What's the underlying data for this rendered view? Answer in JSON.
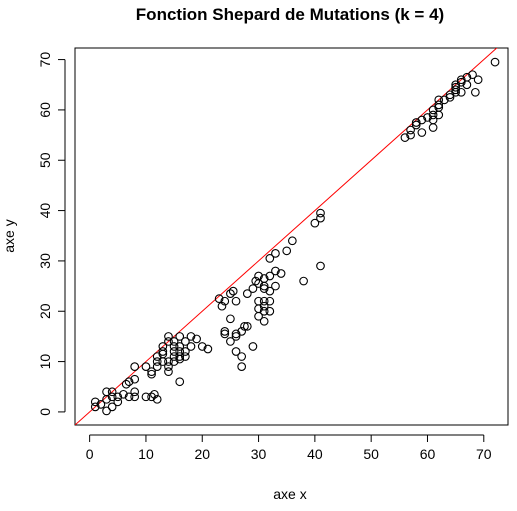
{
  "chart_data": {
    "type": "scatter",
    "title": "Fonction Shepard de Mutations (k = 4)",
    "xlabel": "axe x",
    "ylabel": "axe y",
    "xlim": [
      -2.6,
      74.3
    ],
    "ylim": [
      -2.6,
      72.3
    ],
    "x_ticks": [
      0,
      10,
      20,
      30,
      40,
      50,
      60,
      70
    ],
    "y_ticks": [
      0,
      10,
      20,
      30,
      40,
      50,
      60,
      70
    ],
    "reference_line": {
      "slope": 1,
      "intercept": 0,
      "color": "#ff0000"
    },
    "points": [
      [
        1,
        2
      ],
      [
        1,
        1
      ],
      [
        2,
        1.5
      ],
      [
        3,
        0.2
      ],
      [
        3,
        2.5
      ],
      [
        3,
        4
      ],
      [
        4,
        4
      ],
      [
        4,
        3
      ],
      [
        4,
        1
      ],
      [
        5,
        2
      ],
      [
        5,
        3
      ],
      [
        6,
        3.5
      ],
      [
        6.5,
        5.5
      ],
      [
        7,
        6
      ],
      [
        7,
        3
      ],
      [
        8,
        4
      ],
      [
        8,
        3
      ],
      [
        8,
        9
      ],
      [
        8,
        6.5
      ],
      [
        10,
        9
      ],
      [
        10,
        3
      ],
      [
        11,
        3
      ],
      [
        11,
        8
      ],
      [
        11,
        7.5
      ],
      [
        11.5,
        3.5
      ],
      [
        12,
        2.5
      ],
      [
        12,
        9
      ],
      [
        12,
        10
      ],
      [
        12,
        11
      ],
      [
        13,
        10
      ],
      [
        13,
        11.5
      ],
      [
        13,
        13
      ],
      [
        13,
        12
      ],
      [
        14,
        15
      ],
      [
        14,
        14
      ],
      [
        14,
        9
      ],
      [
        14,
        8
      ],
      [
        14,
        10
      ],
      [
        15,
        14
      ],
      [
        15,
        12
      ],
      [
        15,
        11
      ],
      [
        15,
        13
      ],
      [
        15,
        10
      ],
      [
        16,
        6
      ],
      [
        16,
        15
      ],
      [
        16,
        12
      ],
      [
        16,
        11
      ],
      [
        16,
        13
      ],
      [
        16,
        10.5
      ],
      [
        17,
        14
      ],
      [
        17,
        12
      ],
      [
        17,
        11
      ],
      [
        18,
        15
      ],
      [
        18,
        13
      ],
      [
        19,
        14.5
      ],
      [
        20,
        13
      ],
      [
        21,
        12.5
      ],
      [
        23,
        22.5
      ],
      [
        23.5,
        21
      ],
      [
        24,
        22
      ],
      [
        24,
        15.5
      ],
      [
        24,
        16
      ],
      [
        25,
        18.5
      ],
      [
        25,
        14
      ],
      [
        25,
        23.5
      ],
      [
        25.5,
        24
      ],
      [
        26,
        22
      ],
      [
        26,
        15
      ],
      [
        26,
        12
      ],
      [
        26,
        15.5
      ],
      [
        27,
        16
      ],
      [
        27,
        11
      ],
      [
        27,
        9
      ],
      [
        27.5,
        17
      ],
      [
        28,
        23.5
      ],
      [
        28,
        17
      ],
      [
        29,
        24.5
      ],
      [
        29,
        13
      ],
      [
        29.5,
        26
      ],
      [
        30,
        25.5
      ],
      [
        30,
        22
      ],
      [
        30,
        20.5
      ],
      [
        30,
        19
      ],
      [
        30,
        27
      ],
      [
        31,
        22
      ],
      [
        31,
        24.5
      ],
      [
        31,
        21
      ],
      [
        31,
        20
      ],
      [
        31,
        25
      ],
      [
        31,
        26.5
      ],
      [
        31,
        18
      ],
      [
        32,
        27
      ],
      [
        32,
        24
      ],
      [
        32,
        22
      ],
      [
        32,
        20
      ],
      [
        32,
        30.5
      ],
      [
        33,
        28
      ],
      [
        33,
        25
      ],
      [
        33,
        31.5
      ],
      [
        34,
        27.5
      ],
      [
        35,
        32
      ],
      [
        36,
        34
      ],
      [
        38,
        26
      ],
      [
        40,
        37.5
      ],
      [
        41,
        38.5
      ],
      [
        41,
        39.5
      ],
      [
        41,
        29
      ],
      [
        56,
        54.5
      ],
      [
        57,
        55
      ],
      [
        57,
        56
      ],
      [
        58,
        57
      ],
      [
        58,
        57.5
      ],
      [
        59,
        55.5
      ],
      [
        59,
        58
      ],
      [
        60,
        58.5
      ],
      [
        61,
        58
      ],
      [
        61,
        59
      ],
      [
        61,
        60
      ],
      [
        61,
        56.5
      ],
      [
        62,
        60.5
      ],
      [
        62,
        61
      ],
      [
        62,
        62
      ],
      [
        62,
        59
      ],
      [
        63,
        62
      ],
      [
        64,
        63
      ],
      [
        64,
        62.5
      ],
      [
        65,
        64
      ],
      [
        65,
        63.5
      ],
      [
        65,
        64.5
      ],
      [
        65,
        65
      ],
      [
        66,
        63.5
      ],
      [
        66,
        65.5
      ],
      [
        66,
        66
      ],
      [
        67,
        66.5
      ],
      [
        67,
        65
      ],
      [
        68,
        67
      ],
      [
        68.5,
        63.5
      ],
      [
        69,
        66
      ],
      [
        72,
        69.5
      ]
    ]
  }
}
